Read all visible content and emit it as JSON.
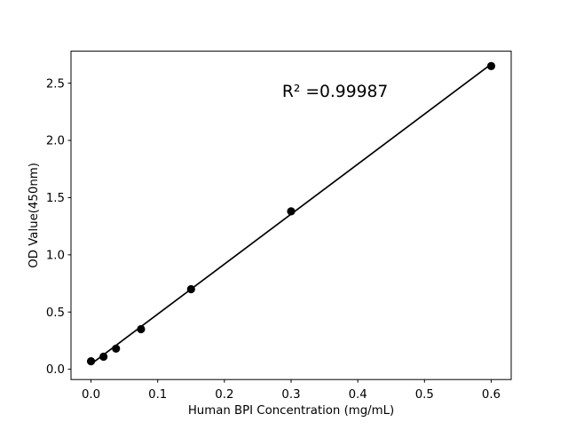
{
  "figure": {
    "background_color": "#ffffff",
    "foreground_color": "#000000"
  },
  "chart_data": {
    "type": "scatter",
    "title": "",
    "xlabel": "Human BPI Concentration (mg/mL)",
    "ylabel": "OD Value(450nm)",
    "points": {
      "x": [
        0,
        0.01875,
        0.0375,
        0.075,
        0.15,
        0.3,
        0.6
      ],
      "y": [
        0.07,
        0.11,
        0.18,
        0.35,
        0.7,
        1.38,
        2.65
      ]
    },
    "fit_line": {
      "x": [
        0,
        0.6
      ],
      "y": [
        0.045,
        2.667
      ]
    },
    "annotation": {
      "text": "R² =0.99987",
      "x": 0.366,
      "y": 2.43
    },
    "xlim": [
      -0.03,
      0.63
    ],
    "ylim": [
      -0.09,
      2.78
    ],
    "xticks": {
      "values": [
        0,
        0.1,
        0.2,
        0.3,
        0.4,
        0.5,
        0.6
      ],
      "labels": [
        "0.0",
        "0.1",
        "0.2",
        "0.3",
        "0.4",
        "0.5",
        "0.6"
      ]
    },
    "yticks": {
      "values": [
        0,
        0.5,
        1.0,
        1.5,
        2.0,
        2.5
      ],
      "labels": [
        "0.0",
        "0.5",
        "1.0",
        "1.5",
        "2.0",
        "2.5"
      ]
    },
    "grid": false,
    "legend": null,
    "marker_color": "#000000",
    "line_color": "#000000"
  }
}
